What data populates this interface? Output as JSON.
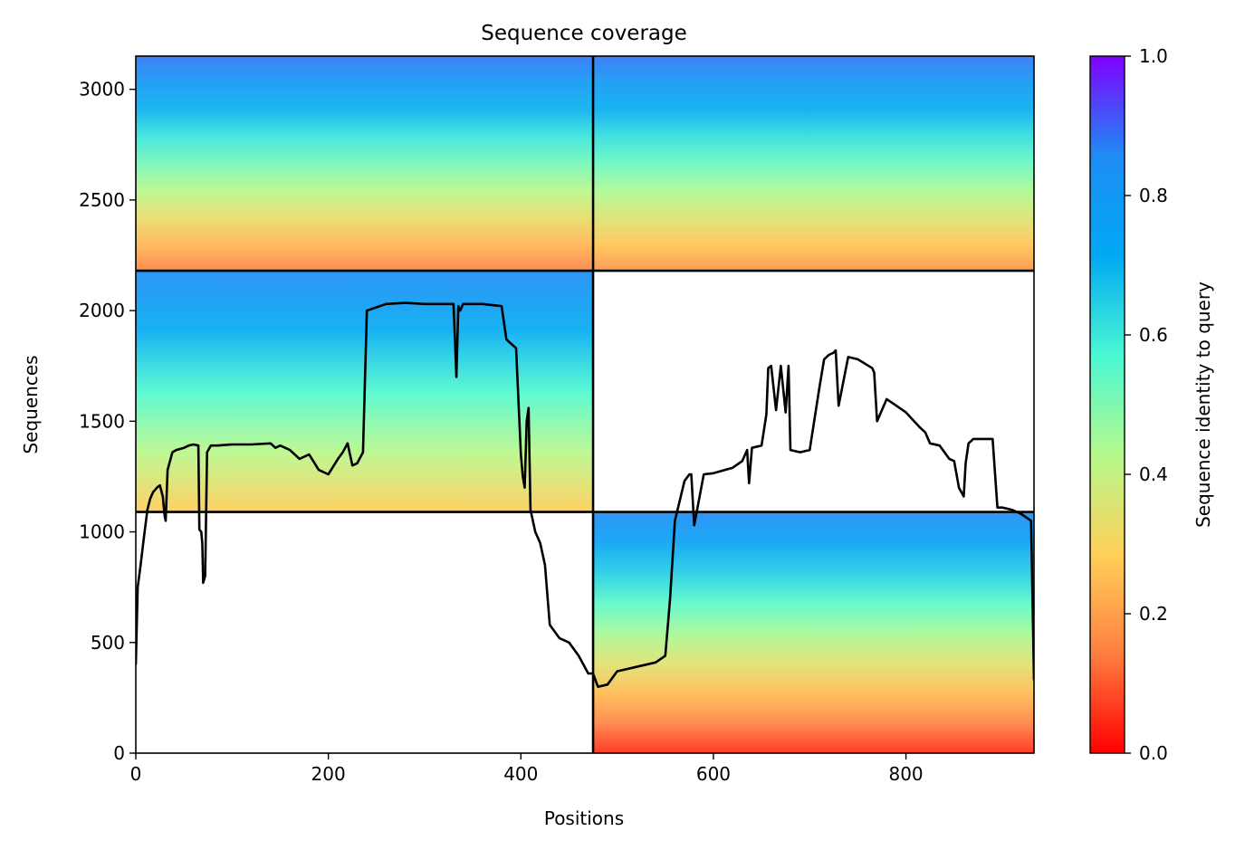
{
  "chart_data": {
    "type": "heatmap",
    "title": "Sequence coverage",
    "xlabel": "Positions",
    "ylabel": "Sequences",
    "xlim": [
      0,
      933
    ],
    "ylim": [
      0,
      3150
    ],
    "x_ticks": [
      0,
      200,
      400,
      600,
      800
    ],
    "y_ticks": [
      0,
      500,
      1000,
      1500,
      2000,
      2500,
      3000
    ],
    "colorbar": {
      "label": "Sequence identity to query",
      "colormap": "rainbow_r",
      "range": [
        0.0,
        1.0
      ],
      "ticks": [
        "0.0",
        "0.2",
        "0.4",
        "0.6",
        "0.8",
        "1.0"
      ],
      "colors": [
        "#ff0000",
        "#ff7f41",
        "#ffd059",
        "#b5f98d",
        "#4af8d3",
        "#00a8f3",
        "#1e8cf5",
        "#8000ff"
      ]
    },
    "grid_dividers": {
      "x": [
        475
      ],
      "y": [
        1090,
        2180
      ]
    },
    "coverage_blocks": [
      {
        "x": [
          0,
          475
        ],
        "y": [
          1090,
          2180
        ],
        "identity_top": 0.85,
        "identity_bottom": 0.28
      },
      {
        "x": [
          475,
          933
        ],
        "y": [
          2180,
          3150
        ],
        "identity_top": 0.88,
        "identity_bottom": 0.18
      },
      {
        "x": [
          0,
          475
        ],
        "y": [
          2180,
          3150
        ],
        "identity_top": 0.88,
        "identity_bottom": 0.15
      },
      {
        "x": [
          475,
          933
        ],
        "y": [
          0,
          1090
        ],
        "identity_top": 0.85,
        "identity_bottom": 0.05
      }
    ],
    "coverage_line": {
      "color": "#000000",
      "x": [
        0,
        2,
        5,
        8,
        12,
        15,
        18,
        22,
        25,
        28,
        30,
        31,
        33,
        38,
        42,
        50,
        55,
        60,
        65,
        66,
        68,
        69,
        70,
        72,
        74,
        78,
        85,
        100,
        120,
        140,
        145,
        150,
        160,
        170,
        180,
        190,
        200,
        210,
        215,
        220,
        225,
        230,
        236,
        240,
        260,
        280,
        300,
        320,
        330,
        333,
        335,
        337,
        340,
        345,
        360,
        380,
        385,
        395,
        400,
        402,
        404,
        406,
        408,
        410,
        415,
        420,
        425,
        430,
        440,
        450,
        460,
        470,
        475,
        480,
        490,
        500,
        520,
        540,
        550,
        555,
        560,
        570,
        575,
        577,
        580,
        590,
        600,
        620,
        630,
        633,
        635,
        637,
        640,
        650,
        655,
        657,
        660,
        665,
        670,
        675,
        678,
        680,
        690,
        700,
        710,
        715,
        720,
        725,
        727,
        730,
        740,
        750,
        765,
        767,
        770,
        780,
        790,
        800,
        815,
        820,
        825,
        835,
        845,
        850,
        855,
        860,
        862,
        865,
        870,
        880,
        890,
        895,
        900,
        910,
        920,
        930,
        933
      ],
      "y": [
        400,
        750,
        850,
        960,
        1100,
        1150,
        1180,
        1200,
        1210,
        1160,
        1070,
        1050,
        1280,
        1360,
        1370,
        1380,
        1390,
        1395,
        1390,
        1010,
        1000,
        950,
        770,
        800,
        1360,
        1390,
        1390,
        1395,
        1395,
        1400,
        1380,
        1390,
        1370,
        1330,
        1350,
        1280,
        1260,
        1330,
        1360,
        1400,
        1300,
        1310,
        1360,
        2000,
        2030,
        2035,
        2030,
        2030,
        2030,
        1700,
        2020,
        2000,
        2030,
        2030,
        2030,
        2020,
        1870,
        1830,
        1350,
        1250,
        1200,
        1500,
        1560,
        1100,
        1000,
        950,
        850,
        580,
        520,
        500,
        440,
        360,
        360,
        300,
        310,
        370,
        390,
        410,
        440,
        700,
        1050,
        1230,
        1260,
        1260,
        1030,
        1260,
        1265,
        1290,
        1320,
        1350,
        1370,
        1220,
        1380,
        1390,
        1530,
        1740,
        1750,
        1550,
        1750,
        1540,
        1750,
        1370,
        1360,
        1370,
        1650,
        1780,
        1800,
        1810,
        1820,
        1570,
        1790,
        1780,
        1740,
        1720,
        1500,
        1600,
        1570,
        1540,
        1470,
        1450,
        1400,
        1390,
        1330,
        1320,
        1200,
        1160,
        1310,
        1400,
        1420,
        1420,
        1420,
        1110,
        1110,
        1100,
        1080,
        1050,
        330
      ]
    }
  }
}
